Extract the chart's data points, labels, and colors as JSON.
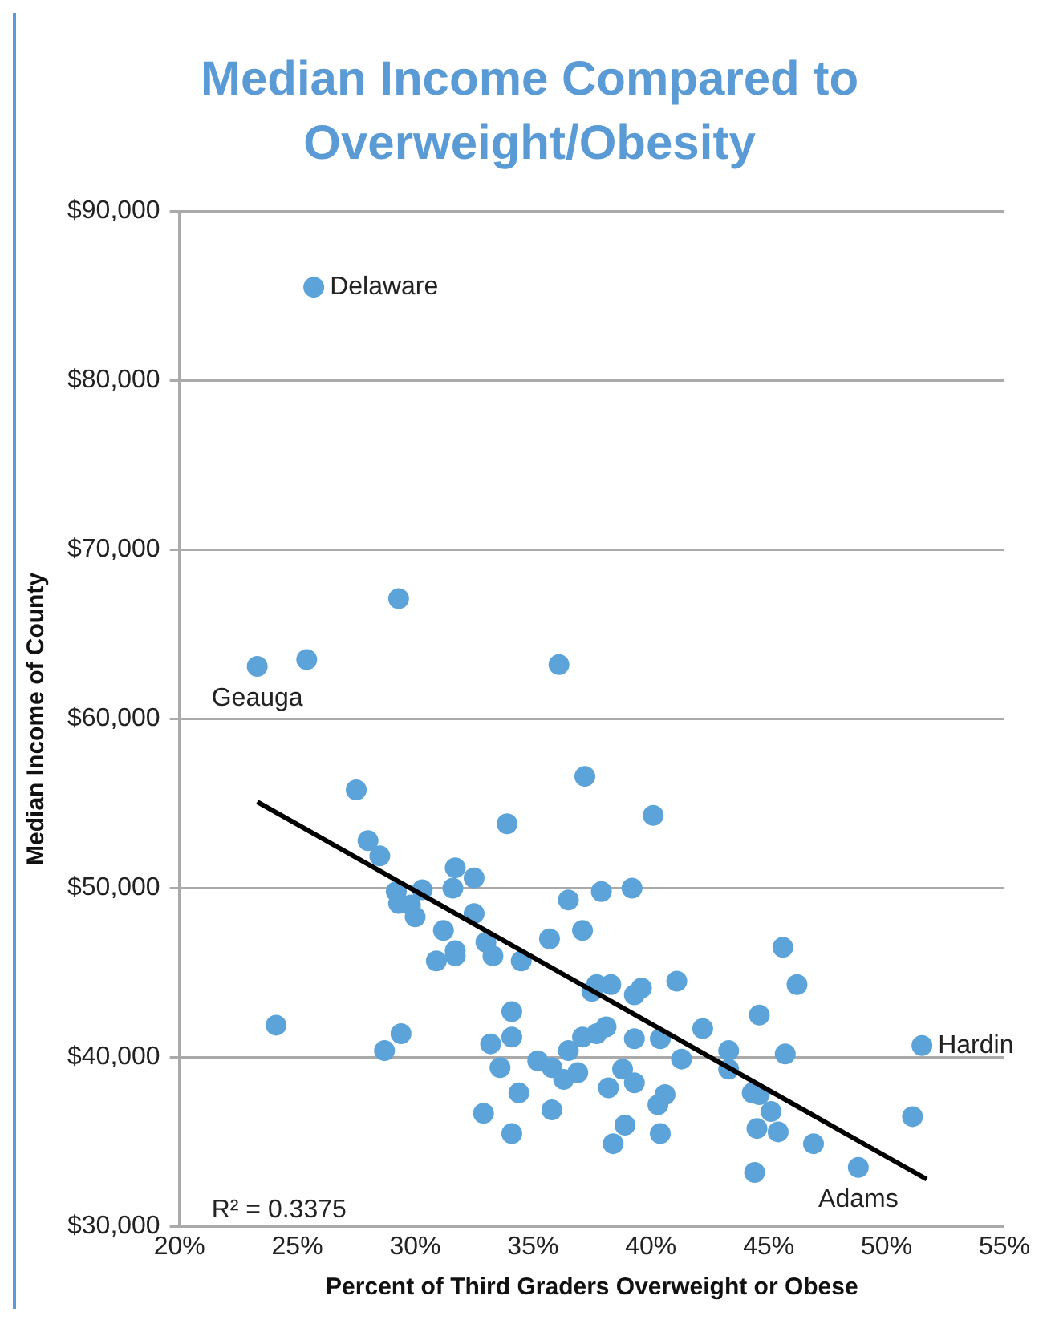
{
  "chart_data": {
    "type": "scatter",
    "title": "Median Income Compared to Overweight/Obesity",
    "xlabel": "Percent of Third Graders Overweight or Obese",
    "ylabel": "Median Income of County",
    "x": [
      25.7,
      29.3,
      23.3,
      25.4,
      36.1,
      27.5,
      28.0,
      28.5,
      31.7,
      32.5,
      31.6,
      33.9,
      37.2,
      30.3,
      29.2,
      29.3,
      29.8,
      30.0,
      32.5,
      31.2,
      33.0,
      33.3,
      31.7,
      31.7,
      30.9,
      34.5,
      35.7,
      36.5,
      37.1,
      24.1,
      29.4,
      28.7,
      34.1,
      34.1,
      33.2,
      33.6,
      35.2,
      35.8,
      36.5,
      37.1,
      36.3,
      36.9,
      34.4,
      35.8,
      32.9,
      34.1,
      37.5,
      37.9,
      39.2,
      40.1,
      45.6,
      46.2,
      41.1,
      39.6,
      38.3,
      37.7,
      39.3,
      44.6,
      42.2,
      38.1,
      37.7,
      39.3,
      40.4,
      41.3,
      43.3,
      43.3,
      45.7,
      51.5,
      38.8,
      39.3,
      38.2,
      40.6,
      40.3,
      44.3,
      44.6,
      45.1,
      44.5,
      45.4,
      38.9,
      40.4,
      38.4,
      46.9,
      51.1,
      48.8,
      44.4
    ],
    "series": [
      {
        "color": "#5ba3d9",
        "values": [
          85500,
          67100,
          63100,
          63500,
          63200,
          55800,
          52800,
          51900,
          51200,
          50600,
          50000,
          53800,
          56600,
          49900,
          49800,
          49100,
          49000,
          48300,
          48500,
          47500,
          46800,
          46000,
          46300,
          46000,
          45700,
          45700,
          47000,
          49300,
          47500,
          41900,
          41400,
          40400,
          42700,
          41200,
          40800,
          39400,
          39800,
          39400,
          40400,
          41200,
          38700,
          39100,
          37900,
          36900,
          36700,
          35500,
          43900,
          49800,
          50000,
          54300,
          46500,
          44300,
          44500,
          44100,
          44300,
          44300,
          43700,
          42500,
          41700,
          41800,
          41400,
          41100,
          41100,
          39900,
          40400,
          39300,
          40200,
          40700,
          39300,
          38500,
          38200,
          37800,
          37200,
          37900,
          37800,
          36800,
          35800,
          35600,
          36000,
          35500,
          34900,
          34900,
          36500,
          33500,
          33200
        ]
      },
      {
        "type": "line",
        "marker": "none",
        "color": "#000000",
        "x": [
          23.3,
          51.7
        ],
        "values": [
          55100,
          32800
        ]
      }
    ],
    "xlim": [
      20,
      55
    ],
    "xticks": [
      {
        "value": 20,
        "label": "20%"
      },
      {
        "value": 25,
        "label": "25%"
      },
      {
        "value": 30,
        "label": "30%"
      },
      {
        "value": 35,
        "label": "35%"
      },
      {
        "value": 40,
        "label": "40%"
      },
      {
        "value": 45,
        "label": "45%"
      },
      {
        "value": 50,
        "label": "50%"
      },
      {
        "value": 55,
        "label": "55%"
      }
    ],
    "ylim": [
      30000,
      90000
    ],
    "yticks": [
      {
        "value": 30000,
        "label": "$30,000"
      },
      {
        "value": 40000,
        "label": "$40,000"
      },
      {
        "value": 50000,
        "label": "$50,000"
      },
      {
        "value": 60000,
        "label": "$60,000"
      },
      {
        "value": 70000,
        "label": "$70,000"
      },
      {
        "value": 80000,
        "label": "$80,000"
      },
      {
        "value": 90000,
        "label": "$90,000"
      }
    ],
    "grid": "y",
    "legend": false,
    "marker": "circle",
    "annotations": [
      {
        "text": "Delaware",
        "x": 25.7,
        "y": 85500
      },
      {
        "text": "Geauga",
        "x": 23.3,
        "y": 63100
      },
      {
        "text": "Hardin",
        "x": 51.5,
        "y": 40700
      },
      {
        "text": "Adams",
        "x": 48.8,
        "y": 33500
      },
      "R² = 0.3375"
    ]
  }
}
